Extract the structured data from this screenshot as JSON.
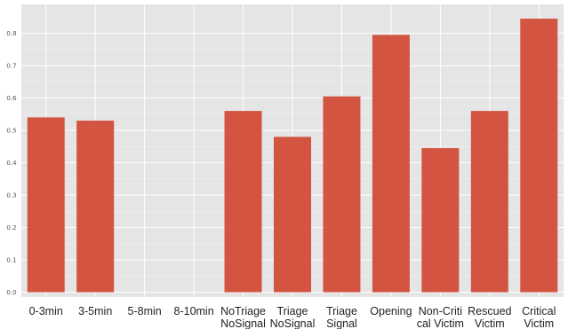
{
  "chart_data": {
    "type": "bar",
    "title": "",
    "xlabel": "",
    "ylabel": "",
    "ylim": [
      0,
      0.88
    ],
    "yticks": [
      0.0,
      0.1,
      0.2,
      0.3,
      0.4,
      0.5,
      0.6,
      0.7,
      0.8
    ],
    "ytick_labels": [
      "0.0",
      "0.1",
      "0.2",
      "0.3",
      "0.4",
      "0.5",
      "0.6",
      "0.7",
      "0.8"
    ],
    "grid": true,
    "categories": [
      [
        "0-3min"
      ],
      [
        "3-5min"
      ],
      [
        "5-8min"
      ],
      [
        "8-10min"
      ],
      [
        "NoTriage",
        "NoSignal"
      ],
      [
        "Triage",
        "NoSignal"
      ],
      [
        "Triage",
        "Signal"
      ],
      [
        "Opening"
      ],
      [
        "Non-Criti",
        "cal Victim"
      ],
      [
        "Rescued",
        "Victim"
      ],
      [
        "Critical",
        "Victim"
      ]
    ],
    "values": [
      0.54,
      0.53,
      0.0,
      0.0,
      0.56,
      0.48,
      0.605,
      0.795,
      0.445,
      0.56,
      0.845
    ],
    "colors": {
      "bar": "#d35440",
      "panel_background": "#e5e5e5",
      "grid": "#ffffff"
    }
  }
}
